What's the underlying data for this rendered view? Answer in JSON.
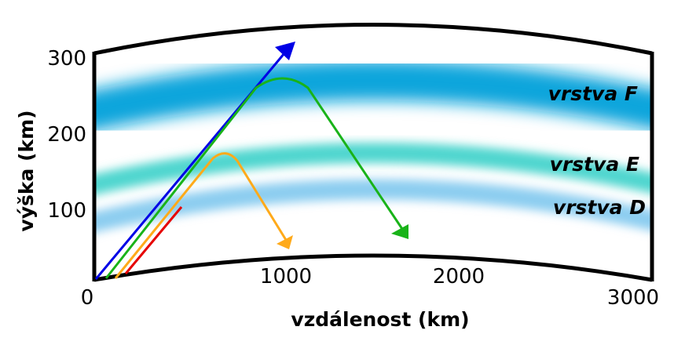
{
  "axes": {
    "x_title": "vzdálenost (km)",
    "y_title": "výška (km)",
    "x_ticks": [
      "0",
      "1000",
      "2000",
      "3000"
    ],
    "y_ticks": [
      "300",
      "200",
      "100"
    ]
  },
  "layers": [
    {
      "id": "F",
      "label": "vrstva F",
      "color": "#0ea5dc"
    },
    {
      "id": "E",
      "label": "vrstva E",
      "color": "#4fd6cf"
    },
    {
      "id": "D",
      "label": "vrstva D",
      "color": "#8ccdf0"
    }
  ],
  "rays": [
    {
      "id": "blue",
      "color": "#0000e6",
      "reflected": false
    },
    {
      "id": "green",
      "color": "#19b319",
      "reflected": true
    },
    {
      "id": "orange",
      "color": "#ffaa1a",
      "reflected": true
    },
    {
      "id": "red",
      "color": "#e60000",
      "reflected": false
    }
  ]
}
